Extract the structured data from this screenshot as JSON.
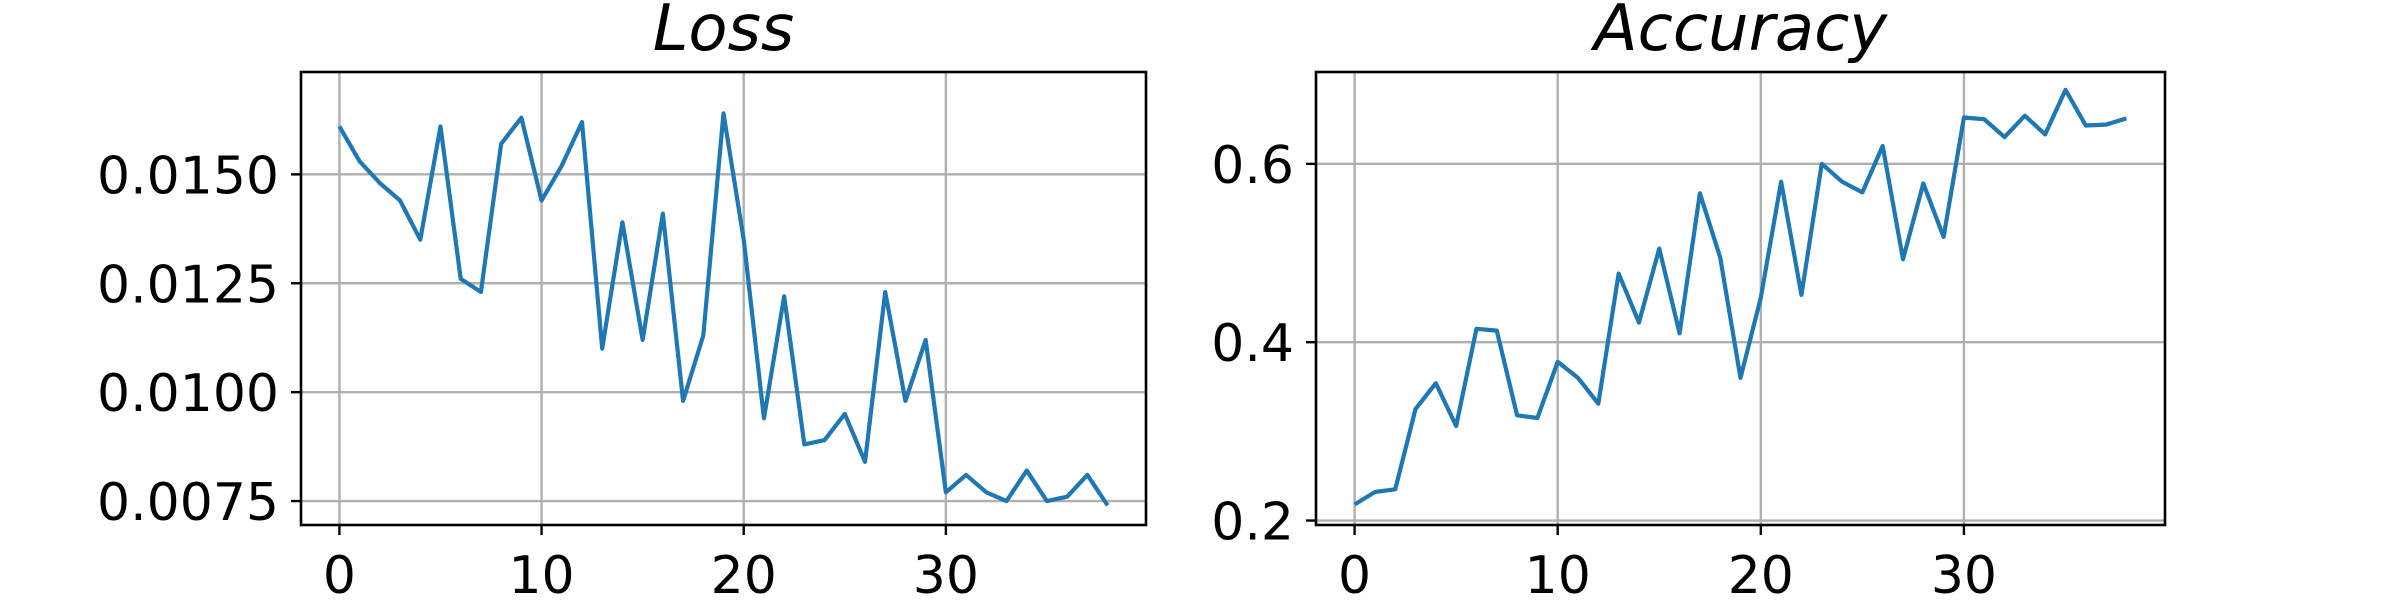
{
  "chart_data": [
    {
      "type": "line",
      "title": "Loss",
      "xlabel": "",
      "ylabel": "",
      "xlim": [
        -1.9,
        39.9
      ],
      "ylim": [
        0.00695,
        0.01735
      ],
      "xticks": [
        0,
        10,
        20,
        30
      ],
      "xtick_labels": [
        "0",
        "10",
        "20",
        "30"
      ],
      "yticks": [
        0.0075,
        0.01,
        0.0125,
        0.015
      ],
      "ytick_labels": [
        "0.0075",
        "0.0100",
        "0.0125",
        "0.0150"
      ],
      "grid": true,
      "color": "#1f77b4",
      "series": [
        {
          "x": [
            0,
            1,
            2,
            3,
            4,
            5,
            6,
            7,
            8,
            9,
            10,
            11,
            12,
            13,
            14,
            15,
            16,
            17,
            18,
            19,
            20,
            21,
            22,
            23,
            24,
            25,
            26,
            27,
            28,
            29,
            30,
            31,
            32,
            33,
            34,
            35,
            36,
            37,
            38
          ],
          "values": [
            0.0161,
            0.0153,
            0.0148,
            0.0144,
            0.0135,
            0.0161,
            0.0126,
            0.0123,
            0.0157,
            0.0163,
            0.0144,
            0.0152,
            0.0162,
            0.011,
            0.0139,
            0.0112,
            0.0141,
            0.0098,
            0.0113,
            0.0164,
            0.0135,
            0.0094,
            0.0122,
            0.0088,
            0.0089,
            0.0095,
            0.0084,
            0.0123,
            0.0098,
            0.0112,
            0.0077,
            0.0081,
            0.0077,
            0.0075,
            0.0082,
            0.0075,
            0.0076,
            0.0081,
            0.0074
          ]
        }
      ]
    },
    {
      "type": "line",
      "title": "Accuracy",
      "xlabel": "",
      "ylabel": "",
      "xlim": [
        -1.9,
        39.9
      ],
      "ylim": [
        0.195,
        0.703
      ],
      "xticks": [
        0,
        10,
        20,
        30
      ],
      "xtick_labels": [
        "0",
        "10",
        "20",
        "30"
      ],
      "yticks": [
        0.2,
        0.4,
        0.6
      ],
      "ytick_labels": [
        "0.2",
        "0.4",
        "0.6"
      ],
      "grid": true,
      "color": "#1f77b4",
      "series": [
        {
          "x": [
            0,
            1,
            2,
            3,
            4,
            5,
            6,
            7,
            8,
            9,
            10,
            11,
            12,
            13,
            14,
            15,
            16,
            17,
            18,
            19,
            20,
            21,
            22,
            23,
            24,
            25,
            26,
            27,
            28,
            29,
            30,
            31,
            32,
            33,
            34,
            35,
            36,
            37,
            38
          ],
          "values": [
            0.218,
            0.232,
            0.235,
            0.325,
            0.354,
            0.306,
            0.415,
            0.413,
            0.318,
            0.315,
            0.378,
            0.36,
            0.331,
            0.477,
            0.422,
            0.505,
            0.41,
            0.567,
            0.495,
            0.36,
            0.45,
            0.58,
            0.453,
            0.6,
            0.58,
            0.568,
            0.62,
            0.493,
            0.578,
            0.518,
            0.652,
            0.65,
            0.63,
            0.654,
            0.633,
            0.683,
            0.643,
            0.644,
            0.651
          ]
        }
      ]
    }
  ]
}
